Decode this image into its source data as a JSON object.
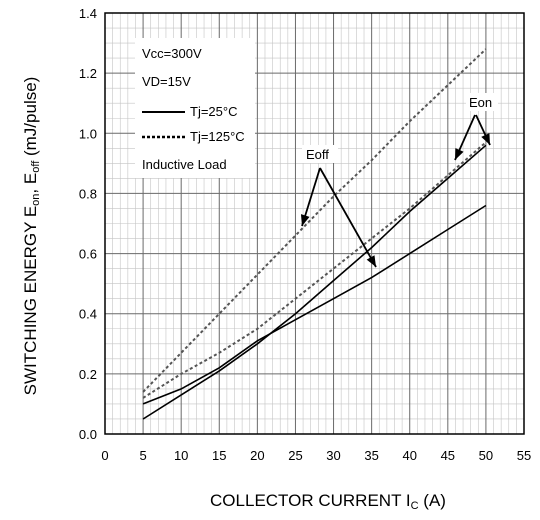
{
  "chart_data": {
    "type": "line",
    "title": "",
    "xlabel": "COLLECTOR CURRENT I",
    "xlabel_sub": "C",
    "xlabel_unit": " (A)",
    "ylabel_main": "SWITCHING ENERGY E",
    "ylabel_sub1": "on",
    "ylabel_mid": ",  E",
    "ylabel_sub2": "off",
    "ylabel_unit": " (mJ/pulse)",
    "xlim": [
      0,
      55
    ],
    "ylim": [
      0,
      1.4
    ],
    "xticks": [
      "0",
      "5",
      "10",
      "15",
      "20",
      "25",
      "30",
      "35",
      "40",
      "45",
      "50",
      "55"
    ],
    "yticks": [
      "0.0",
      "0.2",
      "0.4",
      "0.6",
      "0.8",
      "1.0",
      "1.2",
      "1.4"
    ],
    "grid": true,
    "legend_position": "top-left",
    "conditions": [
      "Vcc=300V",
      "VD=15V"
    ],
    "legend": [
      {
        "label": "Tj=25°C",
        "style": "solid"
      },
      {
        "label": "Tj=125°C",
        "style": "dashed"
      }
    ],
    "note": "Inductive Load",
    "annotations": [
      {
        "text": "Eon",
        "targets": "Eon curves"
      },
      {
        "text": "Eoff",
        "targets": "Eoff curves"
      }
    ],
    "series": [
      {
        "curve": "Eon",
        "temp": "25°C",
        "style": "solid",
        "x": [
          5,
          10,
          15,
          20,
          25,
          30,
          35,
          40,
          45,
          50
        ],
        "y": [
          0.05,
          0.13,
          0.21,
          0.3,
          0.4,
          0.51,
          0.62,
          0.74,
          0.85,
          0.96
        ]
      },
      {
        "curve": "Eoff",
        "temp": "25°C",
        "style": "solid",
        "x": [
          5,
          10,
          15,
          20,
          25,
          30,
          35,
          40,
          45,
          50
        ],
        "y": [
          0.1,
          0.15,
          0.22,
          0.31,
          0.38,
          0.45,
          0.52,
          0.6,
          0.68,
          0.76
        ]
      },
      {
        "curve": "Eon",
        "temp": "125°C",
        "style": "dashed",
        "x": [
          5,
          10,
          15,
          20,
          25,
          30,
          35,
          40,
          45,
          50
        ],
        "y": [
          0.12,
          0.2,
          0.27,
          0.35,
          0.45,
          0.55,
          0.65,
          0.75,
          0.86,
          0.97
        ]
      },
      {
        "curve": "Eoff",
        "temp": "125°C",
        "style": "dashed",
        "x": [
          5,
          10,
          15,
          20,
          25,
          30,
          35,
          40,
          45,
          50
        ],
        "y": [
          0.14,
          0.27,
          0.4,
          0.53,
          0.66,
          0.79,
          0.91,
          1.04,
          1.16,
          1.28
        ]
      }
    ]
  }
}
